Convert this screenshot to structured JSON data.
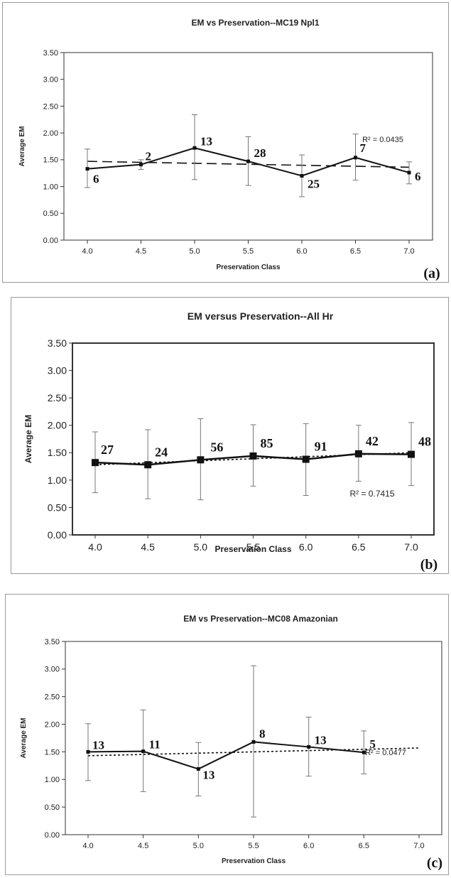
{
  "chart_data": [
    {
      "type": "line",
      "id": "a",
      "title": "EM vs Preservation--MC19 Npl1",
      "xlabel": "Preservation Class",
      "ylabel": "Average EM",
      "x_ticks": [
        "4.0",
        "4.5",
        "5.0",
        "5.5",
        "6.0",
        "6.5",
        "7.0"
      ],
      "y_ticks": [
        "0.00",
        "0.50",
        "1.00",
        "1.50",
        "2.00",
        "2.50",
        "3.00",
        "3.50"
      ],
      "ylim": [
        0,
        3.5
      ],
      "x": [
        4.0,
        4.5,
        5.0,
        5.5,
        6.0,
        6.5,
        7.0
      ],
      "y": [
        1.33,
        1.41,
        1.72,
        1.47,
        1.2,
        1.54,
        1.26
      ],
      "err_upper": [
        1.7,
        1.5,
        2.34,
        1.93,
        1.59,
        1.98,
        1.46
      ],
      "err_lower": [
        0.98,
        1.32,
        1.13,
        1.02,
        0.81,
        1.12,
        1.05
      ],
      "point_labels": [
        "6",
        "2",
        "13",
        "28",
        "25",
        "7",
        "6"
      ],
      "trendline": {
        "style": "long-dash",
        "x": [
          4.0,
          7.0
        ],
        "y": [
          1.47,
          1.36
        ]
      },
      "r2_label": "R² = 0.0435",
      "panel_label": "(a)",
      "grid": false
    },
    {
      "type": "line",
      "id": "b",
      "title": "EM versus Preservation--All Hr",
      "xlabel": "Preservation Class",
      "ylabel": "Average EM",
      "x_ticks": [
        "4.0",
        "4.5",
        "5.0",
        "5.5",
        "6.0",
        "6.5",
        "7.0"
      ],
      "y_ticks": [
        "0.00",
        "0.50",
        "1.00",
        "1.50",
        "2.00",
        "2.50",
        "3.00",
        "3.50"
      ],
      "ylim": [
        0,
        3.5
      ],
      "x": [
        4.0,
        4.5,
        5.0,
        5.5,
        6.0,
        6.5,
        7.0
      ],
      "y": [
        1.32,
        1.28,
        1.37,
        1.44,
        1.38,
        1.48,
        1.47
      ],
      "err_upper": [
        1.88,
        1.92,
        2.12,
        2.01,
        2.03,
        2.0,
        2.05
      ],
      "err_lower": [
        0.77,
        0.66,
        0.64,
        0.89,
        0.72,
        0.98,
        0.9
      ],
      "point_labels": [
        "27",
        "24",
        "56",
        "85",
        "91",
        "42",
        "48"
      ],
      "trendline": {
        "style": "dotted",
        "x": [
          4.0,
          7.0
        ],
        "y": [
          1.28,
          1.5
        ]
      },
      "r2_label": "R² = 0.7415",
      "panel_label": "(b)",
      "grid": false
    },
    {
      "type": "line",
      "id": "c",
      "title": "EM vs Preservation--MC08 Amazonian",
      "xlabel": "Preservation Class",
      "ylabel": "Average EM",
      "x_ticks": [
        "4.0",
        "4.5",
        "5.0",
        "5.5",
        "6.0",
        "6.5",
        "7.0"
      ],
      "y_ticks": [
        "0.00",
        "0.50",
        "1.00",
        "1.50",
        "2.00",
        "2.50",
        "3.00",
        "3.50"
      ],
      "ylim": [
        0,
        3.5
      ],
      "x": [
        4.0,
        4.5,
        5.0,
        5.5,
        6.0,
        6.5
      ],
      "y": [
        1.5,
        1.51,
        1.19,
        1.68,
        1.59,
        1.49
      ],
      "err_upper": [
        2.01,
        2.26,
        1.67,
        3.06,
        2.13,
        1.88
      ],
      "err_lower": [
        0.98,
        0.78,
        0.7,
        0.32,
        1.06,
        1.1
      ],
      "point_labels": [
        "13",
        "11",
        "13",
        "8",
        "13",
        "5"
      ],
      "trendline": {
        "style": "dotted",
        "x": [
          4.0,
          7.0
        ],
        "y": [
          1.43,
          1.57
        ]
      },
      "r2_label": "R² = 0.0477",
      "panel_label": "(c)",
      "grid": false
    }
  ]
}
